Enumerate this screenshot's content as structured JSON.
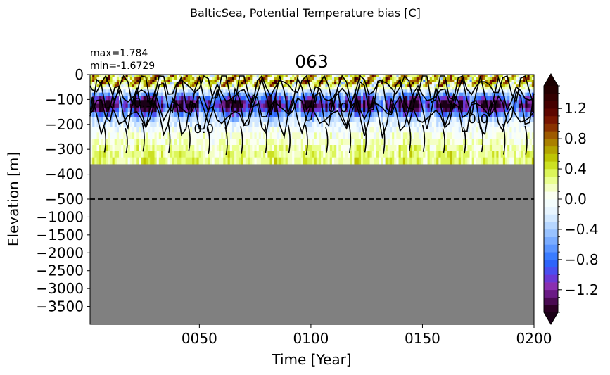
{
  "figure": {
    "suptitle": "BalticSea, Potential Temperature bias [C]",
    "panel_title": "063",
    "stats": {
      "max": "max=1.784",
      "min": "min=-1.6729"
    }
  },
  "chart_data": {
    "type": "heatmap",
    "title": "063",
    "xlabel": "Time [Year]",
    "ylabel": "Elevation [m]",
    "xlim": [
      1,
      200
    ],
    "x_ticks": [
      {
        "value": 50,
        "label": "0050"
      },
      {
        "value": 100,
        "label": "0100"
      },
      {
        "value": 150,
        "label": "0150"
      },
      {
        "value": 200,
        "label": "0200"
      }
    ],
    "y_upper": {
      "range": [
        -500,
        0
      ],
      "ticks": [
        {
          "value": 0,
          "label": "0"
        },
        {
          "value": -100,
          "label": "−100"
        },
        {
          "value": -200,
          "label": "−200"
        },
        {
          "value": -300,
          "label": "−300"
        },
        {
          "value": -400,
          "label": "−400"
        },
        {
          "value": -500,
          "label": "−500"
        }
      ]
    },
    "y_lower": {
      "range": [
        -4000,
        -500
      ],
      "ticks": [
        {
          "value": -1000,
          "label": "−1000"
        },
        {
          "value": -1500,
          "label": "−1500"
        },
        {
          "value": -2000,
          "label": "−2000"
        },
        {
          "value": -2500,
          "label": "−2500"
        },
        {
          "value": -3000,
          "label": "−3000"
        },
        {
          "value": -3500,
          "label": "−3500"
        }
      ]
    },
    "sea_floor_depth": -360,
    "split_depth": -500,
    "depth_levels": [
      -5,
      -15,
      -25,
      -35,
      -45,
      -55,
      -65,
      -80,
      -95,
      -110,
      -125,
      -140,
      -160,
      -180,
      -200,
      -220,
      -245,
      -270,
      -295,
      -320,
      -345
    ],
    "depth_profile": [
      0.35,
      0.45,
      0.55,
      0.45,
      0.25,
      0.1,
      -0.2,
      -0.5,
      -0.85,
      -1.15,
      -1.3,
      -1.0,
      -0.6,
      -0.3,
      -0.15,
      -0.05,
      0.05,
      0.12,
      0.2,
      0.25,
      0.25
    ],
    "contour_labels": [
      {
        "x": 25,
        "y": -130,
        "text": "0.5"
      },
      {
        "x": 52,
        "y": -235,
        "text": "0.0"
      },
      {
        "x": 112,
        "y": -150,
        "text": "0.0"
      },
      {
        "x": 175,
        "y": -195,
        "text": "0.0"
      }
    ],
    "colorbar": {
      "vmin": -1.5,
      "vmax": 1.5,
      "step": 0.1,
      "ticks": [
        {
          "value": 1.2,
          "label": "1.2"
        },
        {
          "value": 0.8,
          "label": "0.8"
        },
        {
          "value": 0.4,
          "label": "0.4"
        },
        {
          "value": 0.0,
          "label": "0.0"
        },
        {
          "value": -0.4,
          "label": "−0.4"
        },
        {
          "value": -0.8,
          "label": "−0.8"
        },
        {
          "value": -1.2,
          "label": "−1.2"
        }
      ],
      "colors": [
        "#2b0024",
        "#4a0a52",
        "#6a1a85",
        "#8a2fb0",
        "#6a38d6",
        "#4a4ef0",
        "#2e64fa",
        "#3a7cff",
        "#5b95ff",
        "#7aacff",
        "#98c2ff",
        "#b6d6ff",
        "#d2e8ff",
        "#e8f5ff",
        "#f4fdfd",
        "#fbfff2",
        "#f4ffc4",
        "#eaff90",
        "#dcf55a",
        "#cce022",
        "#bdc404",
        "#b3a400",
        "#aa8000",
        "#9e5a00",
        "#8a3200",
        "#781600",
        "#5e0600",
        "#450000",
        "#330000",
        "#240000"
      ],
      "under_color": "#1a0016",
      "over_color": "#1a0000"
    },
    "colors": {
      "land": "#808080",
      "contour": "#000000",
      "split_line": "#000000"
    }
  }
}
